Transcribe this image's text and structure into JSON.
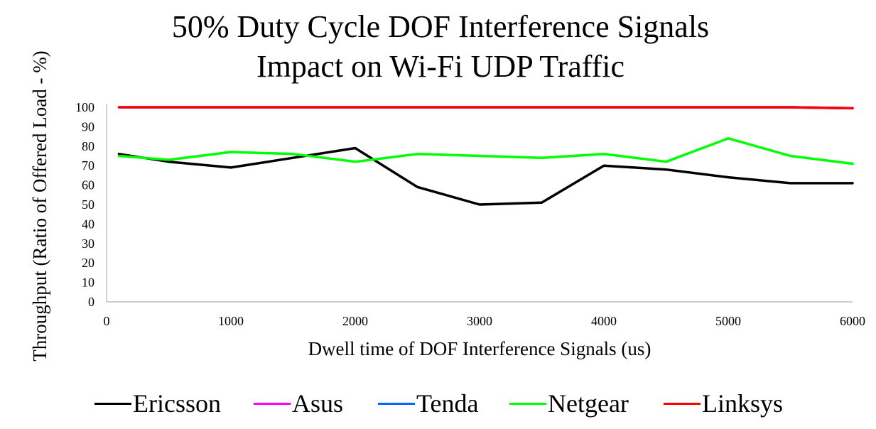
{
  "chart_data": {
    "type": "line",
    "title": "50% Duty Cycle DOF Interference Signals Impact on Wi-Fi UDP Traffic",
    "title_lines": [
      "50% Duty Cycle DOF Interference Signals",
      "Impact on Wi-Fi UDP Traffic"
    ],
    "xlabel": "Dwell time of DOF Interference Signals (us)",
    "ylabel": "Throughput (Ratio of Offered Load - %)",
    "xlim": [
      0,
      6000
    ],
    "ylim": [
      0,
      100
    ],
    "x_ticks": [
      0,
      1000,
      2000,
      3000,
      4000,
      5000,
      6000
    ],
    "y_ticks": [
      0,
      10,
      20,
      30,
      40,
      50,
      60,
      70,
      80,
      90,
      100
    ],
    "grid": false,
    "legend_position": "bottom",
    "x": [
      100,
      500,
      1000,
      1500,
      2000,
      2500,
      3000,
      3500,
      4000,
      4500,
      5000,
      5500,
      6000
    ],
    "series": [
      {
        "name": "Ericsson",
        "color": "#000000",
        "values": [
          76,
          72,
          69,
          74,
          79,
          59,
          50,
          51,
          70,
          68,
          64,
          61,
          61
        ]
      },
      {
        "name": "Asus",
        "color": "#ff00ff",
        "values": [
          100,
          100,
          100,
          100,
          100,
          100,
          100,
          100,
          100,
          100,
          100,
          100,
          99.5
        ]
      },
      {
        "name": "Tenda",
        "color": "#0066ff",
        "values": [
          100,
          100,
          100,
          100,
          100,
          100,
          100,
          100,
          100,
          100,
          100,
          100,
          99.5
        ]
      },
      {
        "name": "Netgear",
        "color": "#00ff00",
        "values": [
          75,
          73,
          77,
          76,
          72,
          76,
          75,
          74,
          76,
          72,
          84,
          75,
          71
        ]
      },
      {
        "name": "Linksys",
        "color": "#ff0000",
        "values": [
          100,
          100,
          100,
          100,
          100,
          100,
          100,
          100,
          100,
          100,
          100,
          100,
          99.5
        ]
      }
    ]
  }
}
